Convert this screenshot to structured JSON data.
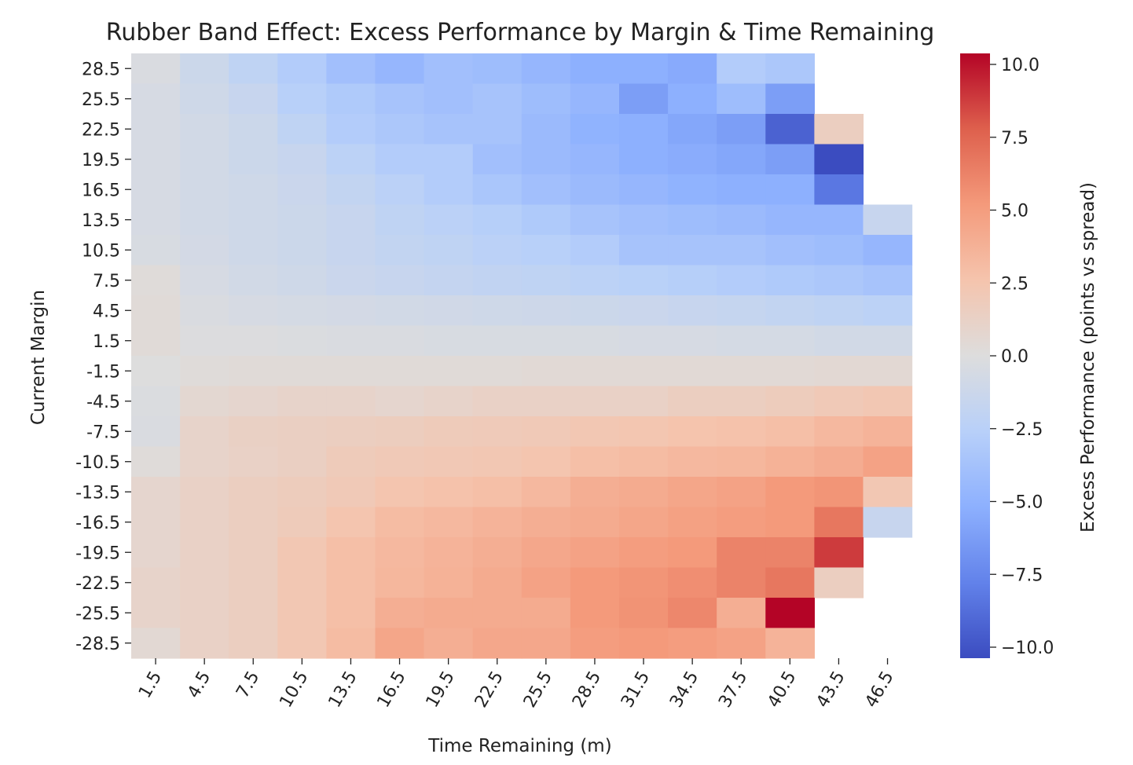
{
  "chart_data": {
    "type": "heatmap",
    "title": "Rubber Band Effect: Excess Performance by Margin & Time Remaining",
    "xlabel": "Time Remaining (m)",
    "ylabel": "Current Margin",
    "colorbar_label": "Excess Performance (points vs spread)",
    "colormap": "coolwarm",
    "vmin": -10,
    "vmax": 10,
    "x": [
      "1.5",
      "4.5",
      "7.5",
      "10.5",
      "13.5",
      "16.5",
      "19.5",
      "22.5",
      "25.5",
      "28.5",
      "31.5",
      "34.5",
      "37.5",
      "40.5",
      "43.5",
      "46.5"
    ],
    "y": [
      "28.5",
      "25.5",
      "22.5",
      "19.5",
      "16.5",
      "13.5",
      "10.5",
      "7.5",
      "4.5",
      "1.5",
      "-1.5",
      "-4.5",
      "-7.5",
      "-10.5",
      "-13.5",
      "-16.5",
      "-19.5",
      "-22.5",
      "-25.5",
      "-28.5"
    ],
    "colorbar_ticks": [
      "10.0",
      "7.5",
      "5.0",
      "2.5",
      "0.0",
      "−2.5",
      "−5.0",
      "−7.5",
      "−10.0"
    ],
    "colorbar_tick_values": [
      10,
      7.5,
      5,
      2.5,
      0,
      -2.5,
      -5,
      -7.5,
      -10
    ],
    "values": [
      [
        -0.3,
        -1.2,
        -2.0,
        -2.8,
        -3.8,
        -4.5,
        -3.8,
        -4.0,
        -4.5,
        -5.0,
        -5.0,
        -5.3,
        -2.8,
        -3.2,
        null,
        null
      ],
      [
        -0.5,
        -1.0,
        -1.5,
        -2.5,
        -3.0,
        -3.5,
        -3.8,
        -3.5,
        -4.0,
        -4.5,
        -6.0,
        -5.0,
        -4.0,
        -6.0,
        null,
        null
      ],
      [
        -0.5,
        -0.8,
        -1.2,
        -2.0,
        -2.8,
        -3.2,
        -3.5,
        -3.5,
        -4.2,
        -4.8,
        -5.0,
        -5.5,
        -6.0,
        -9.0,
        1.5,
        null
      ],
      [
        -0.5,
        -0.8,
        -1.2,
        -1.5,
        -2.2,
        -2.8,
        -2.8,
        -3.8,
        -4.2,
        -4.5,
        -5.0,
        -5.2,
        -5.5,
        -6.0,
        -10.0,
        null
      ],
      [
        -0.5,
        -0.8,
        -1.0,
        -1.3,
        -1.8,
        -2.3,
        -2.8,
        -3.3,
        -3.8,
        -4.2,
        -4.5,
        -4.8,
        -5.0,
        -5.0,
        -8.0,
        null
      ],
      [
        -0.5,
        -0.8,
        -1.0,
        -1.2,
        -1.5,
        -2.0,
        -2.3,
        -2.6,
        -3.0,
        -3.5,
        -3.8,
        -4.0,
        -4.2,
        -4.5,
        -4.5,
        -1.5
      ],
      [
        -0.4,
        -0.7,
        -1.0,
        -1.2,
        -1.5,
        -1.8,
        -2.0,
        -2.3,
        -2.5,
        -2.8,
        -3.5,
        -3.5,
        -3.5,
        -3.8,
        -4.0,
        -4.5
      ],
      [
        0.2,
        -0.5,
        -0.8,
        -1.0,
        -1.3,
        -1.5,
        -1.7,
        -1.9,
        -2.0,
        -2.2,
        -2.4,
        -2.6,
        -2.8,
        -3.0,
        -3.2,
        -3.5
      ],
      [
        0.3,
        -0.3,
        -0.5,
        -0.6,
        -0.7,
        -0.8,
        -0.9,
        -1.0,
        -1.1,
        -1.2,
        -1.3,
        -1.5,
        -1.6,
        -1.8,
        -2.0,
        -2.2
      ],
      [
        0.3,
        -0.1,
        -0.1,
        -0.2,
        -0.3,
        -0.3,
        -0.4,
        -0.4,
        -0.4,
        -0.4,
        -0.5,
        -0.5,
        -0.6,
        -0.6,
        -0.8,
        -0.8
      ],
      [
        0.0,
        0.2,
        0.3,
        0.3,
        0.3,
        0.3,
        0.3,
        0.3,
        0.4,
        0.4,
        0.4,
        0.4,
        0.4,
        0.4,
        0.5,
        0.5
      ],
      [
        -0.2,
        0.6,
        0.8,
        1.0,
        1.0,
        0.8,
        1.0,
        1.2,
        1.2,
        1.2,
        1.2,
        1.5,
        1.5,
        1.7,
        2.0,
        2.2
      ],
      [
        -0.3,
        1.0,
        1.3,
        1.4,
        1.5,
        1.6,
        1.8,
        1.9,
        2.0,
        2.2,
        2.3,
        2.5,
        2.6,
        2.8,
        3.2,
        3.5
      ],
      [
        0.2,
        1.0,
        1.2,
        1.4,
        1.8,
        2.0,
        2.1,
        2.2,
        2.4,
        2.8,
        3.0,
        3.2,
        3.3,
        3.6,
        3.9,
        4.5
      ],
      [
        0.8,
        1.2,
        1.5,
        1.7,
        2.0,
        2.4,
        2.6,
        2.8,
        3.2,
        3.8,
        4.0,
        4.3,
        4.5,
        5.0,
        5.2,
        2.2
      ],
      [
        0.8,
        1.2,
        1.5,
        1.8,
        2.4,
        3.0,
        3.2,
        3.5,
        3.8,
        4.0,
        4.3,
        4.6,
        4.8,
        5.0,
        6.5,
        -1.5
      ],
      [
        0.8,
        1.2,
        1.5,
        2.2,
        2.8,
        3.2,
        3.5,
        3.8,
        4.2,
        4.5,
        4.8,
        5.0,
        6.0,
        6.0,
        8.5,
        null
      ],
      [
        1.0,
        1.2,
        1.5,
        2.2,
        2.8,
        3.3,
        3.6,
        4.0,
        4.5,
        5.0,
        5.2,
        5.5,
        6.0,
        6.5,
        1.5,
        null
      ],
      [
        1.0,
        1.2,
        1.5,
        2.2,
        2.8,
        3.8,
        4.0,
        4.0,
        4.0,
        5.0,
        5.3,
        5.8,
        3.8,
        10.0,
        null,
        null
      ],
      [
        0.5,
        1.2,
        1.5,
        2.2,
        3.0,
        4.3,
        3.8,
        4.2,
        4.2,
        4.8,
        5.0,
        4.8,
        4.5,
        3.5,
        null,
        null
      ]
    ]
  }
}
